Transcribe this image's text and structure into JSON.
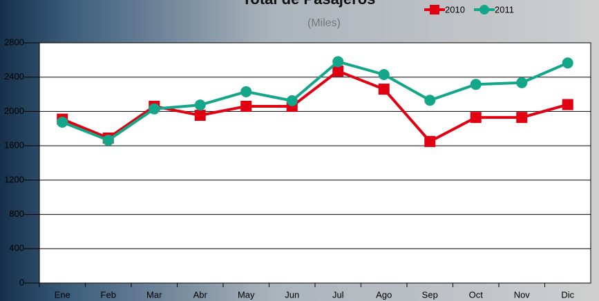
{
  "chart_data": {
    "type": "line",
    "title": "Total de Pasajeros",
    "subtitle": "(Miles)",
    "categories": [
      "Ene",
      "Feb",
      "Mar",
      "Abr",
      "May",
      "Jun",
      "Jul",
      "Ago",
      "Sep",
      "Oct",
      "Nov",
      "Dic"
    ],
    "series": [
      {
        "name": "2010",
        "color": "#e00012",
        "marker": "square",
        "values": [
          1910,
          1690,
          2060,
          1955,
          2060,
          2060,
          2470,
          2260,
          1650,
          1930,
          1930,
          2080
        ]
      },
      {
        "name": "2011",
        "color": "#13a689",
        "marker": "circle",
        "values": [
          1875,
          1665,
          2030,
          2075,
          2230,
          2125,
          2580,
          2430,
          2130,
          2315,
          2335,
          2565
        ]
      }
    ],
    "ylim": [
      0,
      2800
    ],
    "yticks": [
      0,
      400,
      800,
      1200,
      1600,
      2000,
      2400,
      2800
    ],
    "grid": true
  }
}
